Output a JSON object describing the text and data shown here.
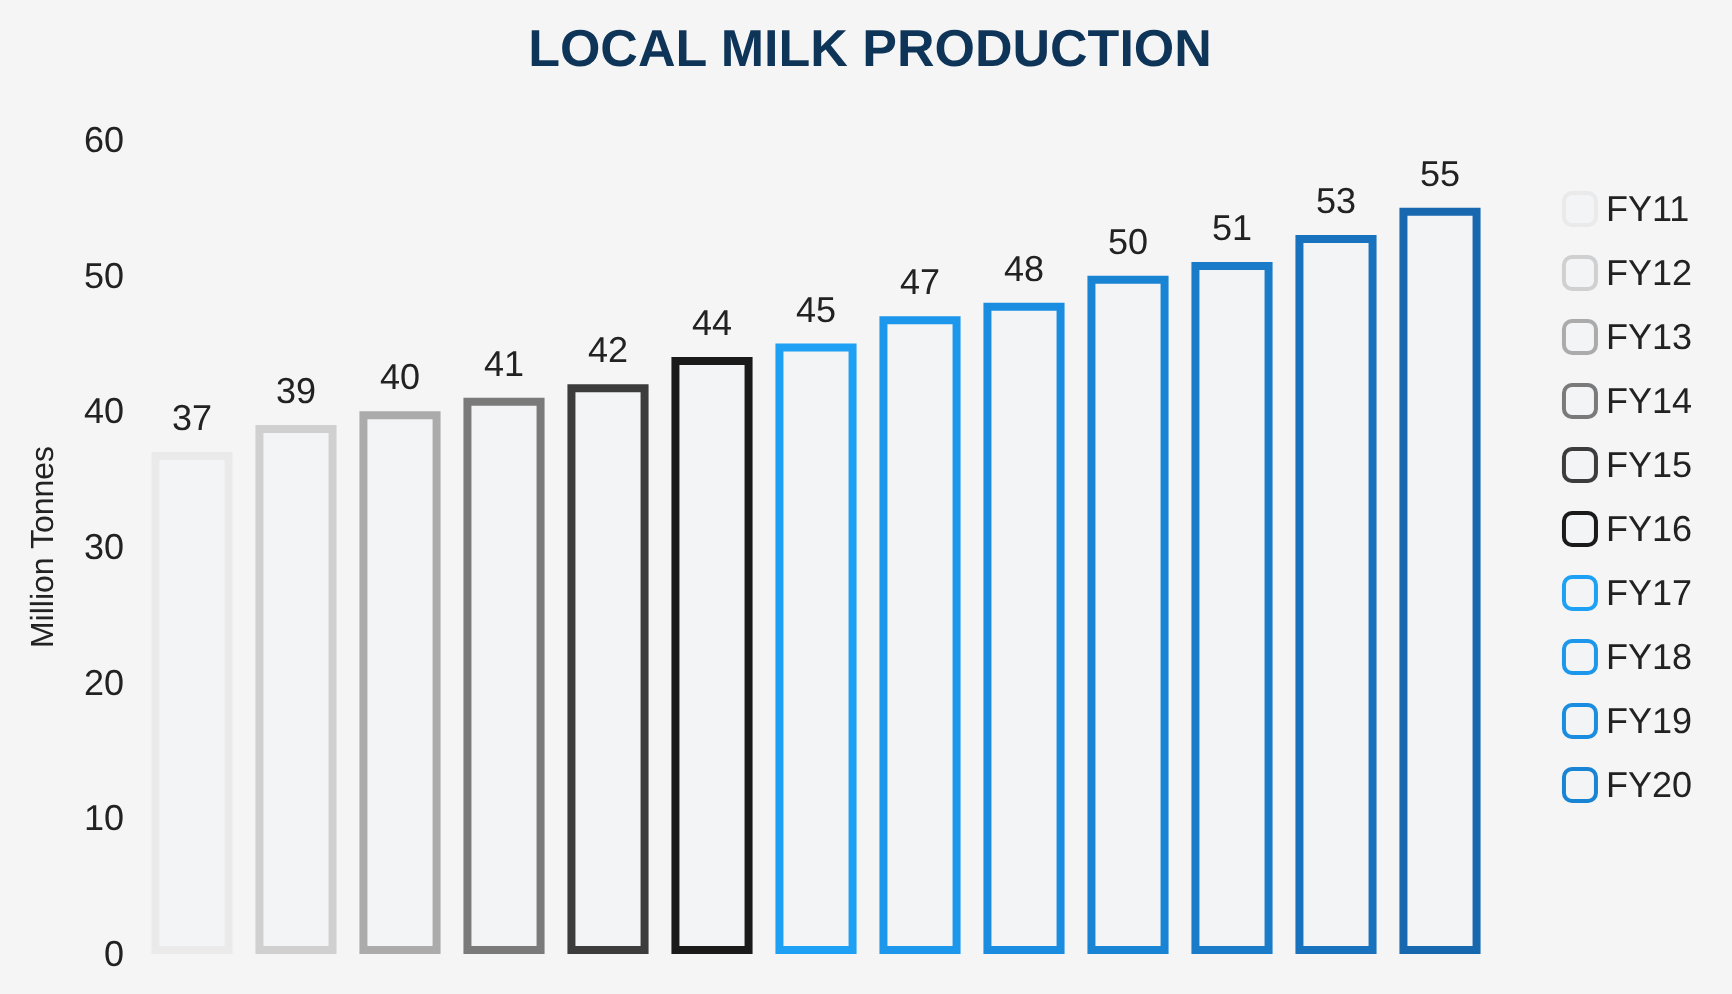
{
  "chart_data": {
    "type": "bar",
    "title": "LOCAL MILK PRODUCTION",
    "ylabel": "Million Tonnes",
    "categories": [
      null,
      null,
      null,
      null,
      null,
      null,
      null,
      null,
      null,
      null,
      null,
      null,
      null
    ],
    "stacked": true,
    "data_labels": true,
    "legend": "right",
    "grid": false,
    "ylim": [
      0,
      60
    ],
    "yticks": [
      0,
      10,
      20,
      30,
      40,
      50,
      60
    ],
    "series": [
      {
        "name": "FY11",
        "color": "#eaeaea",
        "values": [
          37,
          null,
          null,
          null,
          null,
          null,
          null,
          null,
          null,
          null,
          null,
          null,
          null
        ]
      },
      {
        "name": "FY12",
        "color": "#d0d0d0",
        "values": [
          null,
          39,
          null,
          null,
          null,
          null,
          null,
          null,
          null,
          null,
          null,
          null,
          null
        ]
      },
      {
        "name": "FY13",
        "color": "#ababab",
        "values": [
          null,
          null,
          40,
          null,
          null,
          null,
          null,
          null,
          null,
          null,
          null,
          null,
          null
        ]
      },
      {
        "name": "FY14",
        "color": "#7a7a7a",
        "values": [
          null,
          null,
          null,
          41,
          null,
          null,
          null,
          null,
          null,
          null,
          null,
          null,
          null
        ]
      },
      {
        "name": "FY15",
        "color": "#3c3c3c",
        "values": [
          null,
          null,
          null,
          null,
          42,
          null,
          null,
          null,
          null,
          null,
          null,
          null,
          null
        ]
      },
      {
        "name": "FY16",
        "color": "#1a1a1a",
        "values": [
          null,
          null,
          null,
          null,
          null,
          44,
          null,
          null,
          null,
          null,
          null,
          null,
          null
        ]
      },
      {
        "name": "FY17",
        "color": "#1ea0f5",
        "values": [
          null,
          null,
          null,
          null,
          null,
          null,
          45,
          null,
          null,
          null,
          null,
          null,
          null
        ]
      },
      {
        "name": "FY18",
        "color": "#1c97ec",
        "values": [
          null,
          null,
          null,
          null,
          null,
          null,
          null,
          47,
          null,
          null,
          null,
          null,
          null
        ]
      },
      {
        "name": "FY19",
        "color": "#1b8de0",
        "values": [
          null,
          null,
          null,
          null,
          null,
          null,
          null,
          null,
          48,
          null,
          null,
          null,
          null
        ]
      },
      {
        "name": "FY20",
        "color": "#1a84d4",
        "values": [
          null,
          null,
          null,
          null,
          null,
          null,
          null,
          null,
          null,
          50,
          null,
          null,
          null
        ]
      },
      {
        "color": "#1a7bc8",
        "values": [
          null,
          null,
          null,
          null,
          null,
          null,
          null,
          null,
          null,
          null,
          51,
          null,
          null
        ]
      },
      {
        "color": "#1972bd",
        "values": [
          null,
          null,
          null,
          null,
          null,
          null,
          null,
          null,
          null,
          null,
          null,
          53,
          null
        ]
      },
      {
        "color": "#1868b0",
        "values": [
          null,
          null,
          null,
          null,
          null,
          null,
          null,
          null,
          null,
          null,
          null,
          null,
          55
        ]
      }
    ]
  }
}
